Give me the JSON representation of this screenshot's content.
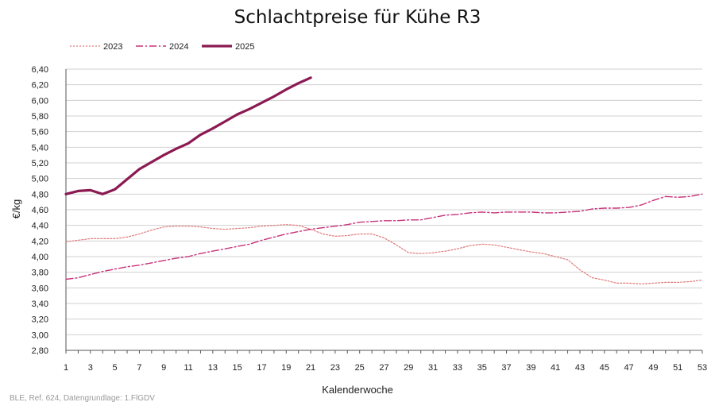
{
  "chart_data": {
    "type": "line",
    "title": "Schlachtpreise für Kühe R3",
    "xlabel": "Kalenderwoche",
    "ylabel": "€/kg",
    "source": "BLE, Ref. 624, Datengrundlage: 1.FlGDV",
    "xlim": [
      1,
      53
    ],
    "ylim": [
      2.8,
      6.4
    ],
    "y_ticks": [
      "2,80",
      "3,00",
      "3,20",
      "3,40",
      "3,60",
      "3,80",
      "4,00",
      "4,20",
      "4,40",
      "4,60",
      "4,80",
      "5,00",
      "5,20",
      "5,40",
      "5,60",
      "5,80",
      "6,00",
      "6,20",
      "6,40"
    ],
    "x_ticks": [
      "1",
      "3",
      "5",
      "7",
      "9",
      "11",
      "13",
      "15",
      "17",
      "19",
      "21",
      "23",
      "25",
      "27",
      "29",
      "31",
      "33",
      "35",
      "37",
      "39",
      "41",
      "43",
      "45",
      "47",
      "49",
      "51",
      "53"
    ],
    "series": [
      {
        "name": "2023",
        "style": "dotted",
        "color": "#e07a7a",
        "x": [
          1,
          2,
          3,
          4,
          5,
          6,
          7,
          8,
          9,
          10,
          11,
          12,
          13,
          14,
          15,
          16,
          17,
          18,
          19,
          20,
          21,
          22,
          23,
          24,
          25,
          26,
          27,
          28,
          29,
          30,
          31,
          32,
          33,
          34,
          35,
          36,
          37,
          38,
          39,
          40,
          41,
          42,
          43,
          44,
          45,
          46,
          47,
          48,
          49,
          50,
          51,
          52,
          53
        ],
        "values": [
          4.19,
          4.21,
          4.23,
          4.23,
          4.23,
          4.25,
          4.29,
          4.34,
          4.38,
          4.39,
          4.39,
          4.38,
          4.36,
          4.35,
          4.36,
          4.37,
          4.39,
          4.4,
          4.41,
          4.4,
          4.35,
          4.29,
          4.26,
          4.27,
          4.29,
          4.29,
          4.24,
          4.15,
          4.05,
          4.04,
          4.05,
          4.07,
          4.1,
          4.14,
          4.16,
          4.15,
          4.12,
          4.09,
          4.06,
          4.04,
          4.0,
          3.96,
          3.83,
          3.73,
          3.7,
          3.66,
          3.66,
          3.65,
          3.66,
          3.67,
          3.67,
          3.68,
          3.7
        ]
      },
      {
        "name": "2024",
        "style": "dashdot",
        "color": "#c8327a",
        "x": [
          1,
          2,
          3,
          4,
          5,
          6,
          7,
          8,
          9,
          10,
          11,
          12,
          13,
          14,
          15,
          16,
          17,
          18,
          19,
          20,
          21,
          22,
          23,
          24,
          25,
          26,
          27,
          28,
          29,
          30,
          31,
          32,
          33,
          34,
          35,
          36,
          37,
          38,
          39,
          40,
          41,
          42,
          43,
          44,
          45,
          46,
          47,
          48,
          49,
          50,
          51,
          52,
          53
        ],
        "values": [
          3.71,
          3.73,
          3.77,
          3.81,
          3.84,
          3.87,
          3.89,
          3.92,
          3.95,
          3.98,
          4.0,
          4.04,
          4.07,
          4.1,
          4.13,
          4.16,
          4.21,
          4.25,
          4.29,
          4.32,
          4.35,
          4.37,
          4.39,
          4.41,
          4.44,
          4.45,
          4.46,
          4.46,
          4.47,
          4.47,
          4.5,
          4.53,
          4.54,
          4.56,
          4.57,
          4.56,
          4.57,
          4.57,
          4.57,
          4.56,
          4.56,
          4.57,
          4.58,
          4.61,
          4.62,
          4.62,
          4.63,
          4.66,
          4.72,
          4.77,
          4.76,
          4.77,
          4.8
        ]
      },
      {
        "name": "2025",
        "style": "solid",
        "color": "#8b1a52",
        "x": [
          1,
          2,
          3,
          4,
          5,
          6,
          7,
          8,
          9,
          10,
          11,
          12,
          13,
          14,
          15,
          16,
          17,
          18,
          19,
          20,
          21
        ],
        "values": [
          4.8,
          4.84,
          4.85,
          4.8,
          4.86,
          4.99,
          5.12,
          5.21,
          5.3,
          5.38,
          5.45,
          5.56,
          5.64,
          5.73,
          5.82,
          5.89,
          5.97,
          6.05,
          6.14,
          6.22,
          6.29
        ]
      }
    ],
    "grid": true,
    "legend_position": "top-left"
  }
}
